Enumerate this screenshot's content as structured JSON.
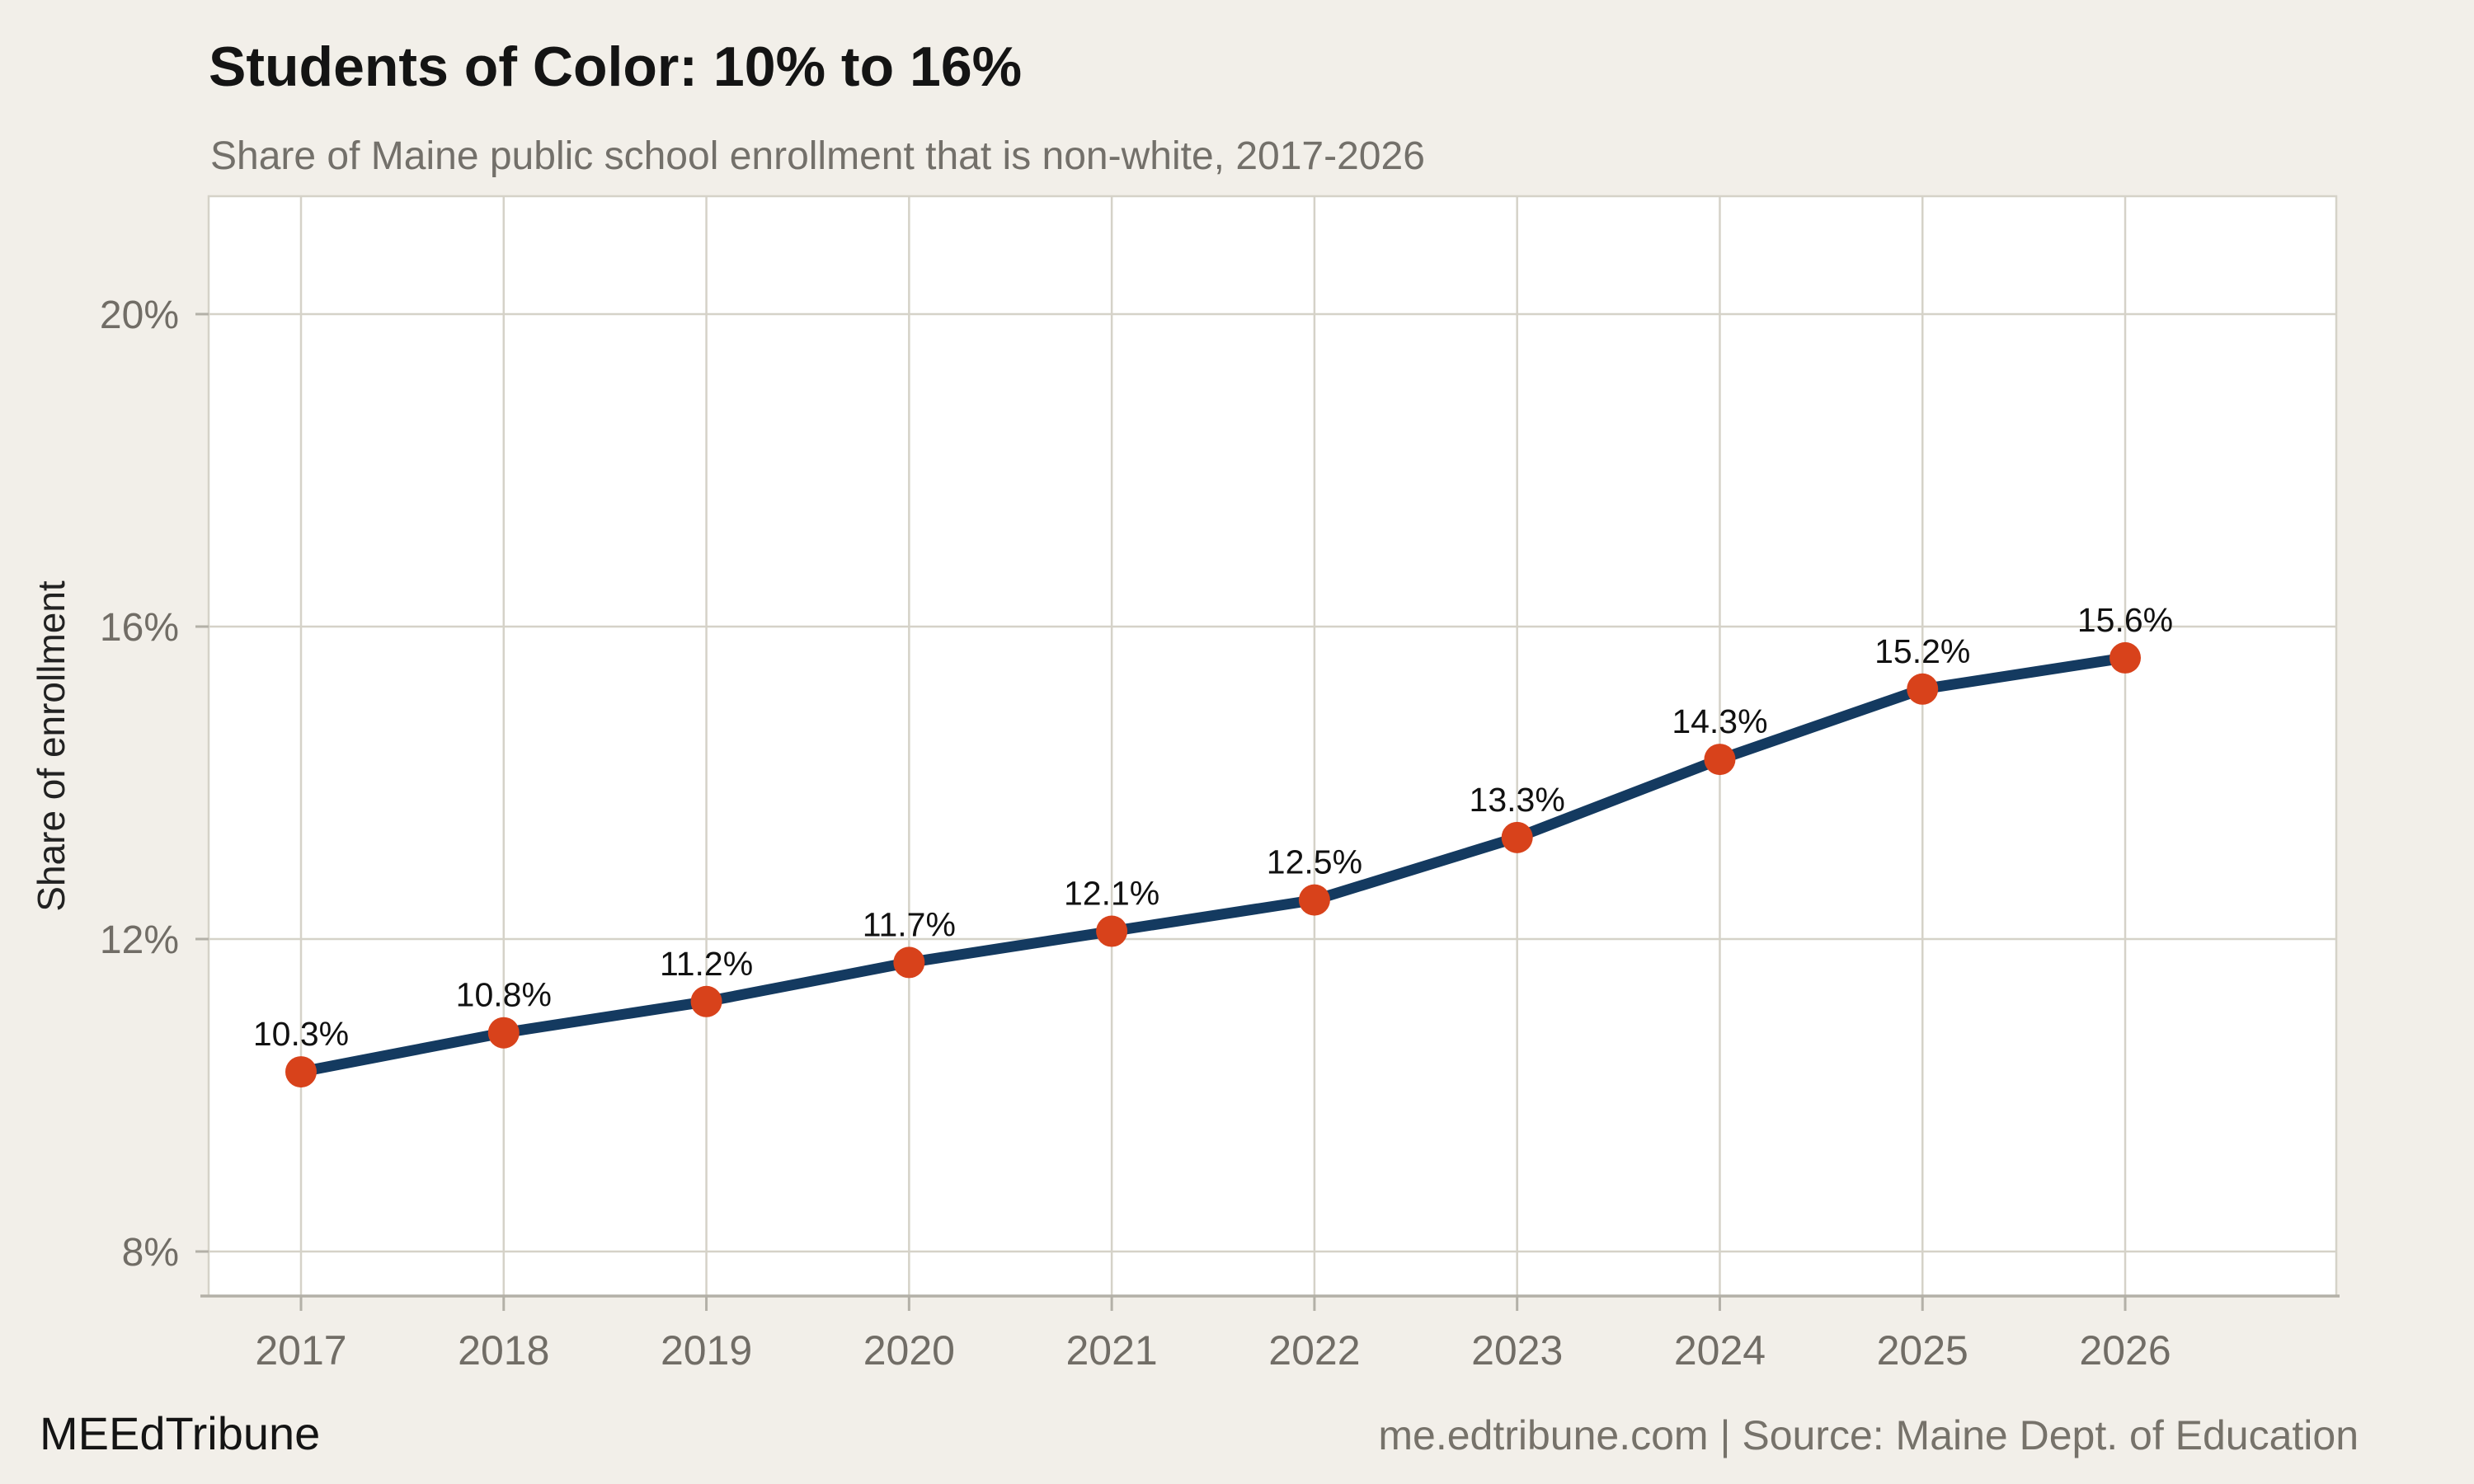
{
  "chart_data": {
    "type": "line",
    "title": "Students of Color: 10% to 16%",
    "subtitle": "Share of Maine public school enrollment that is non-white, 2017-2026",
    "ylabel": "Share of enrollment",
    "xlabel": "",
    "categories": [
      2017,
      2018,
      2019,
      2020,
      2021,
      2022,
      2023,
      2024,
      2025,
      2026
    ],
    "values": [
      10.3,
      10.8,
      11.2,
      11.7,
      12.1,
      12.5,
      13.3,
      14.3,
      15.2,
      15.6
    ],
    "point_labels": [
      "10.3%",
      "10.8%",
      "11.2%",
      "11.7%",
      "12.1%",
      "12.5%",
      "13.3%",
      "14.3%",
      "15.2%",
      "15.6%"
    ],
    "x_tick_labels": [
      "2017",
      "2018",
      "2019",
      "2020",
      "2021",
      "2022",
      "2023",
      "2024",
      "2025",
      "2026"
    ],
    "y_ticks": [
      {
        "value": 8,
        "label": "8%"
      },
      {
        "value": 12,
        "label": "12%"
      },
      {
        "value": 16,
        "label": "16%"
      },
      {
        "value": 20,
        "label": "20%"
      }
    ],
    "ylim": [
      7.4,
      21.5
    ],
    "grid": true,
    "legend": "none"
  },
  "footer": {
    "left": "MEEdTribune",
    "right": "me.edtribune.com | Source: Maine Dept. of Education"
  },
  "colors": {
    "background": "#f2efe9",
    "panel_background": "#ffffff",
    "gridline": "#d5d2c8",
    "panel_border": "#d5d2c8",
    "axis_line": "#b3b0a7",
    "tick_mark": "#b3b0a7",
    "line": "#143a60",
    "point": "#d8421b",
    "data_label": "#111111",
    "tick_label": "#716d66",
    "title_text": "#141414",
    "subtitle_text": "#73706a"
  }
}
